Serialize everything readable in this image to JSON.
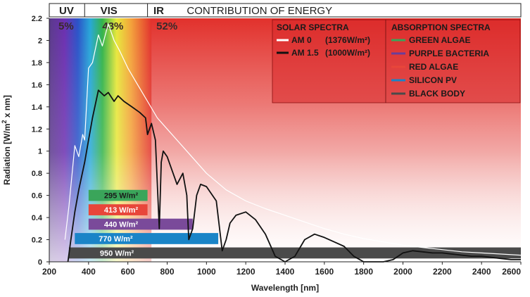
{
  "chart_data": {
    "type": "line",
    "title": "CONTRIBUTION OF ENERGY",
    "xlabel": "Wavelength [nm]",
    "ylabel": "Radiation [W/m2 x nm]",
    "ylabel_sup": "2",
    "xlim": [
      200,
      2600
    ],
    "ylim": [
      0,
      2.2
    ],
    "xticks": [
      200,
      400,
      600,
      800,
      1000,
      1200,
      1400,
      1600,
      1800,
      2000,
      2200,
      2400,
      2600
    ],
    "yticks": [
      0,
      0.2,
      0.4,
      0.6,
      0.8,
      1,
      1.2,
      1.4,
      1.6,
      1.8,
      2,
      2.2
    ],
    "regions": [
      {
        "name": "UV",
        "percent": "5%",
        "from": 200,
        "to": 380
      },
      {
        "name": "VIS",
        "percent": "43%",
        "from": 380,
        "to": 700
      },
      {
        "name": "IR",
        "percent": "52%",
        "from": 700,
        "to": 2600
      }
    ],
    "legend_solar": {
      "title": "SOLAR SPECTRA",
      "items": [
        {
          "label": "AM 0",
          "value": "(1376W/m²)",
          "color": "#ffffff"
        },
        {
          "label": "AM 1.5",
          "value": "(1000W/m²)",
          "color": "#111111"
        }
      ]
    },
    "legend_absorption": {
      "title": "ABSORPTION SPECTRA",
      "items": [
        {
          "label": "GREEN ALGAE",
          "color": "#3aa55a"
        },
        {
          "label": "PURPLE BACTERIA",
          "color": "#6a3d9a"
        },
        {
          "label": "RED ALGAE",
          "color": "#e8463a"
        },
        {
          "label": "SILICON PV",
          "color": "#1a84c7"
        },
        {
          "label": "BLACK BODY",
          "color": "#4a4a4a"
        }
      ]
    },
    "bands": [
      {
        "label": "295 W/m²",
        "x0": 400,
        "x1": 700,
        "y0": 0.55,
        "y1": 0.65,
        "color": "#3aa55a"
      },
      {
        "label": "413 W/m²",
        "x0": 400,
        "x1": 700,
        "y0": 0.42,
        "y1": 0.52,
        "color": "#e8463a"
      },
      {
        "label": "440 W/m²",
        "x0": 400,
        "x1": 930,
        "y0": 0.29,
        "y1": 0.39,
        "color": "#7a4a9a"
      },
      {
        "label": "770 W/m²",
        "x0": 330,
        "x1": 1060,
        "y0": 0.16,
        "y1": 0.26,
        "color": "#1a84c7"
      },
      {
        "label": "950 W/m²",
        "x0": 300,
        "x1": 2600,
        "y0": 0.03,
        "y1": 0.13,
        "color": "#4a4a4a"
      }
    ],
    "series": [
      {
        "name": "AM 0",
        "color": "#ffffff",
        "x": [
          280,
          300,
          330,
          350,
          370,
          380,
          400,
          420,
          450,
          470,
          500,
          530,
          560,
          600,
          650,
          700,
          750,
          800,
          900,
          1000,
          1100,
          1200,
          1300,
          1400,
          1500,
          1600,
          1700,
          1800,
          1900,
          2000,
          2100,
          2200,
          2300,
          2400,
          2500,
          2600
        ],
        "y": [
          0.2,
          0.5,
          1.05,
          0.95,
          1.15,
          1.1,
          1.75,
          1.8,
          2.05,
          1.95,
          2.15,
          2.0,
          1.9,
          1.75,
          1.6,
          1.45,
          1.3,
          1.2,
          1.0,
          0.8,
          0.65,
          0.55,
          0.48,
          0.42,
          0.36,
          0.3,
          0.25,
          0.21,
          0.18,
          0.15,
          0.13,
          0.11,
          0.09,
          0.08,
          0.07,
          0.06
        ]
      },
      {
        "name": "AM 1.5",
        "color": "#111111",
        "x": [
          295,
          310,
          330,
          350,
          380,
          400,
          420,
          450,
          480,
          500,
          530,
          550,
          580,
          620,
          660,
          690,
          700,
          720,
          740,
          760,
          770,
          780,
          800,
          820,
          850,
          880,
          900,
          910,
          930,
          950,
          970,
          1000,
          1050,
          1080,
          1100,
          1120,
          1150,
          1200,
          1250,
          1300,
          1350,
          1400,
          1450,
          1500,
          1550,
          1600,
          1650,
          1700,
          1750,
          1800,
          1850,
          1900,
          1950,
          2000,
          2050,
          2100,
          2150,
          2200,
          2250,
          2300,
          2350,
          2400,
          2450,
          2500,
          2550,
          2600
        ],
        "y": [
          0.0,
          0.2,
          0.45,
          0.65,
          0.9,
          1.1,
          1.3,
          1.55,
          1.5,
          1.53,
          1.45,
          1.5,
          1.45,
          1.4,
          1.35,
          1.3,
          1.15,
          1.25,
          1.1,
          0.3,
          0.9,
          1.0,
          0.95,
          0.85,
          0.7,
          0.8,
          0.6,
          0.2,
          0.3,
          0.6,
          0.7,
          0.68,
          0.55,
          0.1,
          0.2,
          0.35,
          0.42,
          0.45,
          0.38,
          0.25,
          0.05,
          0.0,
          0.05,
          0.2,
          0.25,
          0.22,
          0.18,
          0.14,
          0.05,
          0.0,
          0.0,
          0.0,
          0.02,
          0.08,
          0.1,
          0.09,
          0.08,
          0.08,
          0.07,
          0.06,
          0.05,
          0.05,
          0.04,
          0.03,
          0.02,
          0.02
        ]
      }
    ]
  }
}
